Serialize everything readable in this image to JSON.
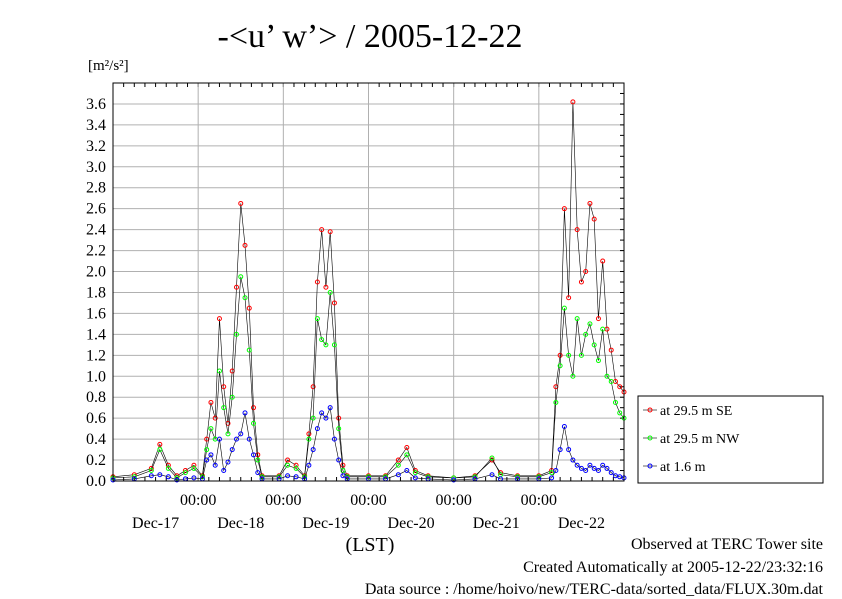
{
  "chart_data": {
    "type": "line",
    "title": "-<u’ w’> / 2005-12-22",
    "ylabel_unit": "[m²/s²]",
    "ylim": [
      0.0,
      3.8
    ],
    "yticks": [
      "0.0",
      "0.2",
      "0.4",
      "0.6",
      "0.8",
      "1.0",
      "1.2",
      "1.4",
      "1.6",
      "1.8",
      "2.0",
      "2.2",
      "2.4",
      "2.6",
      "2.8",
      "3.0",
      "3.2",
      "3.4",
      "3.6"
    ],
    "x_range_days": [
      16.0,
      22.0
    ],
    "x_time_labels": [
      "00:00",
      "00:00",
      "00:00",
      "00:00",
      "00:00"
    ],
    "x_date_labels": [
      "Dec-17",
      "Dec-18",
      "Dec-19",
      "Dec-20",
      "Dec-21",
      "Dec-22"
    ],
    "xlabel": "(LST)",
    "grid": true,
    "legend_position": "right",
    "series": [
      {
        "name": "at 29.5 m SE",
        "color": "#ff0000",
        "points": [
          [
            16.0,
            0.04
          ],
          [
            16.25,
            0.06
          ],
          [
            16.45,
            0.12
          ],
          [
            16.55,
            0.35
          ],
          [
            16.65,
            0.15
          ],
          [
            16.75,
            0.05
          ],
          [
            16.85,
            0.1
          ],
          [
            16.95,
            0.15
          ],
          [
            17.05,
            0.05
          ],
          [
            17.1,
            0.4
          ],
          [
            17.15,
            0.75
          ],
          [
            17.2,
            0.6
          ],
          [
            17.25,
            1.55
          ],
          [
            17.3,
            0.9
          ],
          [
            17.35,
            0.55
          ],
          [
            17.4,
            1.05
          ],
          [
            17.45,
            1.85
          ],
          [
            17.5,
            2.65
          ],
          [
            17.55,
            2.25
          ],
          [
            17.6,
            1.65
          ],
          [
            17.65,
            0.7
          ],
          [
            17.7,
            0.25
          ],
          [
            17.75,
            0.05
          ],
          [
            17.95,
            0.05
          ],
          [
            18.05,
            0.2
          ],
          [
            18.15,
            0.15
          ],
          [
            18.25,
            0.05
          ],
          [
            18.3,
            0.45
          ],
          [
            18.35,
            0.9
          ],
          [
            18.4,
            1.9
          ],
          [
            18.45,
            2.4
          ],
          [
            18.5,
            1.85
          ],
          [
            18.55,
            2.38
          ],
          [
            18.6,
            1.7
          ],
          [
            18.65,
            0.6
          ],
          [
            18.7,
            0.15
          ],
          [
            18.75,
            0.05
          ],
          [
            19.0,
            0.05
          ],
          [
            19.2,
            0.05
          ],
          [
            19.35,
            0.2
          ],
          [
            19.45,
            0.32
          ],
          [
            19.55,
            0.1
          ],
          [
            19.7,
            0.05
          ],
          [
            20.0,
            0.03
          ],
          [
            20.25,
            0.05
          ],
          [
            20.45,
            0.2
          ],
          [
            20.55,
            0.08
          ],
          [
            20.75,
            0.05
          ],
          [
            21.0,
            0.05
          ],
          [
            21.15,
            0.1
          ],
          [
            21.2,
            0.9
          ],
          [
            21.25,
            1.2
          ],
          [
            21.3,
            2.6
          ],
          [
            21.35,
            1.75
          ],
          [
            21.4,
            3.62
          ],
          [
            21.45,
            2.4
          ],
          [
            21.5,
            1.9
          ],
          [
            21.55,
            2.0
          ],
          [
            21.6,
            2.65
          ],
          [
            21.65,
            2.5
          ],
          [
            21.7,
            1.55
          ],
          [
            21.75,
            2.1
          ],
          [
            21.8,
            1.45
          ],
          [
            21.85,
            1.25
          ],
          [
            21.9,
            0.95
          ],
          [
            21.95,
            0.9
          ],
          [
            22.0,
            0.85
          ]
        ]
      },
      {
        "name": "at 29.5 m NW",
        "color": "#00ff00",
        "points": [
          [
            16.0,
            0.03
          ],
          [
            16.25,
            0.04
          ],
          [
            16.45,
            0.1
          ],
          [
            16.55,
            0.3
          ],
          [
            16.65,
            0.12
          ],
          [
            16.75,
            0.03
          ],
          [
            16.85,
            0.08
          ],
          [
            16.95,
            0.12
          ],
          [
            17.05,
            0.04
          ],
          [
            17.1,
            0.3
          ],
          [
            17.15,
            0.5
          ],
          [
            17.2,
            0.4
          ],
          [
            17.25,
            1.05
          ],
          [
            17.3,
            0.7
          ],
          [
            17.35,
            0.45
          ],
          [
            17.4,
            0.8
          ],
          [
            17.45,
            1.4
          ],
          [
            17.5,
            1.95
          ],
          [
            17.55,
            1.75
          ],
          [
            17.6,
            1.25
          ],
          [
            17.65,
            0.55
          ],
          [
            17.7,
            0.2
          ],
          [
            17.75,
            0.04
          ],
          [
            17.95,
            0.04
          ],
          [
            18.05,
            0.15
          ],
          [
            18.15,
            0.12
          ],
          [
            18.25,
            0.04
          ],
          [
            18.3,
            0.4
          ],
          [
            18.35,
            0.6
          ],
          [
            18.4,
            1.55
          ],
          [
            18.45,
            1.35
          ],
          [
            18.5,
            1.3
          ],
          [
            18.55,
            1.8
          ],
          [
            18.6,
            1.3
          ],
          [
            18.65,
            0.5
          ],
          [
            18.7,
            0.1
          ],
          [
            18.75,
            0.04
          ],
          [
            19.0,
            0.04
          ],
          [
            19.2,
            0.04
          ],
          [
            19.35,
            0.15
          ],
          [
            19.45,
            0.25
          ],
          [
            19.55,
            0.08
          ],
          [
            19.7,
            0.04
          ],
          [
            20.0,
            0.03
          ],
          [
            20.25,
            0.04
          ],
          [
            20.45,
            0.22
          ],
          [
            20.55,
            0.06
          ],
          [
            20.75,
            0.04
          ],
          [
            21.0,
            0.04
          ],
          [
            21.15,
            0.08
          ],
          [
            21.2,
            0.75
          ],
          [
            21.25,
            1.1
          ],
          [
            21.3,
            1.65
          ],
          [
            21.35,
            1.2
          ],
          [
            21.4,
            1.0
          ],
          [
            21.45,
            1.55
          ],
          [
            21.5,
            1.2
          ],
          [
            21.55,
            1.4
          ],
          [
            21.6,
            1.5
          ],
          [
            21.65,
            1.3
          ],
          [
            21.7,
            1.15
          ],
          [
            21.75,
            1.45
          ],
          [
            21.8,
            1.0
          ],
          [
            21.85,
            0.95
          ],
          [
            21.9,
            0.75
          ],
          [
            21.95,
            0.65
          ],
          [
            22.0,
            0.6
          ]
        ]
      },
      {
        "name": "at 1.6 m",
        "color": "#0000ff",
        "points": [
          [
            16.0,
            0.01
          ],
          [
            16.25,
            0.02
          ],
          [
            16.45,
            0.05
          ],
          [
            16.55,
            0.06
          ],
          [
            16.65,
            0.04
          ],
          [
            16.75,
            0.01
          ],
          [
            16.85,
            0.02
          ],
          [
            16.95,
            0.03
          ],
          [
            17.05,
            0.02
          ],
          [
            17.1,
            0.2
          ],
          [
            17.15,
            0.25
          ],
          [
            17.2,
            0.15
          ],
          [
            17.25,
            0.4
          ],
          [
            17.3,
            0.1
          ],
          [
            17.35,
            0.18
          ],
          [
            17.4,
            0.3
          ],
          [
            17.45,
            0.4
          ],
          [
            17.5,
            0.45
          ],
          [
            17.55,
            0.65
          ],
          [
            17.6,
            0.4
          ],
          [
            17.65,
            0.25
          ],
          [
            17.7,
            0.08
          ],
          [
            17.75,
            0.02
          ],
          [
            17.95,
            0.02
          ],
          [
            18.05,
            0.05
          ],
          [
            18.15,
            0.04
          ],
          [
            18.25,
            0.02
          ],
          [
            18.3,
            0.15
          ],
          [
            18.35,
            0.3
          ],
          [
            18.4,
            0.5
          ],
          [
            18.45,
            0.65
          ],
          [
            18.5,
            0.6
          ],
          [
            18.55,
            0.7
          ],
          [
            18.6,
            0.4
          ],
          [
            18.65,
            0.2
          ],
          [
            18.7,
            0.05
          ],
          [
            18.75,
            0.02
          ],
          [
            19.0,
            0.02
          ],
          [
            19.2,
            0.02
          ],
          [
            19.35,
            0.06
          ],
          [
            19.45,
            0.1
          ],
          [
            19.55,
            0.03
          ],
          [
            19.7,
            0.02
          ],
          [
            20.0,
            0.01
          ],
          [
            20.25,
            0.02
          ],
          [
            20.45,
            0.06
          ],
          [
            20.55,
            0.02
          ],
          [
            20.75,
            0.02
          ],
          [
            21.0,
            0.02
          ],
          [
            21.15,
            0.03
          ],
          [
            21.2,
            0.1
          ],
          [
            21.25,
            0.3
          ],
          [
            21.3,
            0.52
          ],
          [
            21.35,
            0.3
          ],
          [
            21.4,
            0.2
          ],
          [
            21.45,
            0.15
          ],
          [
            21.5,
            0.12
          ],
          [
            21.55,
            0.1
          ],
          [
            21.6,
            0.15
          ],
          [
            21.65,
            0.12
          ],
          [
            21.7,
            0.1
          ],
          [
            21.75,
            0.15
          ],
          [
            21.8,
            0.12
          ],
          [
            21.85,
            0.08
          ],
          [
            21.9,
            0.05
          ],
          [
            21.95,
            0.04
          ],
          [
            22.0,
            0.03
          ]
        ]
      }
    ]
  },
  "footer": {
    "line1": "Observed at TERC Tower site",
    "line2": "Created Automatically at 2005-12-22/23:32:16",
    "line3": "Data source : /home/hoivo/new/TERC-data/sorted_data/FLUX.30m.dat"
  }
}
